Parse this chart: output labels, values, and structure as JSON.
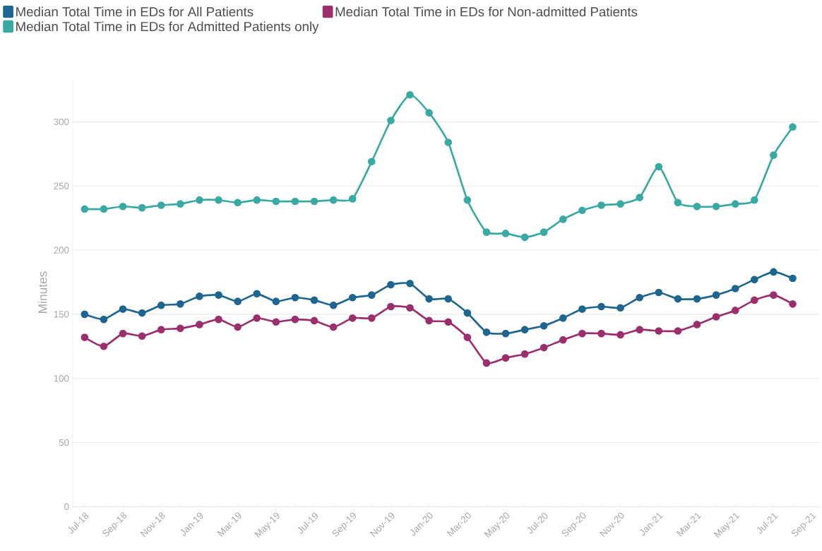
{
  "chart_data": {
    "type": "line",
    "ylabel": "Minutes",
    "legend": "top left",
    "grid": "y",
    "marker": "circle",
    "line_style": "solid",
    "x": [
      "2018-07",
      "2018-08",
      "2018-09",
      "2018-10",
      "2018-11",
      "2018-12",
      "2019-01",
      "2019-02",
      "2019-03",
      "2019-04",
      "2019-05",
      "2019-06",
      "2019-07",
      "2019-08",
      "2019-09",
      "2019-10",
      "2019-11",
      "2019-12",
      "2020-01",
      "2020-02",
      "2020-03",
      "2020-04",
      "2020-05",
      "2020-06",
      "2020-07",
      "2020-08",
      "2020-09",
      "2020-10",
      "2020-11",
      "2020-12",
      "2021-01",
      "2021-02",
      "2021-03",
      "2021-04",
      "2021-05",
      "2021-06",
      "2021-07",
      "2021-08"
    ],
    "xlim": [
      "2018-06-12",
      "2021-09-14"
    ],
    "xticks": [
      {
        "value": "2018-07",
        "label": "Jul-18"
      },
      {
        "value": "2018-08",
        "label": null
      },
      {
        "value": "2018-09",
        "label": "Sep-18"
      },
      {
        "value": "2018-10",
        "label": null
      },
      {
        "value": "2018-11",
        "label": "Nov-18"
      },
      {
        "value": "2018-12",
        "label": null
      },
      {
        "value": "2019-01",
        "label": "Jan-19"
      },
      {
        "value": "2019-02",
        "label": null
      },
      {
        "value": "2019-03",
        "label": "Mar-19"
      },
      {
        "value": "2019-04",
        "label": null
      },
      {
        "value": "2019-05",
        "label": "May-19"
      },
      {
        "value": "2019-06",
        "label": null
      },
      {
        "value": "2019-07",
        "label": "Jul-19"
      },
      {
        "value": "2019-08",
        "label": null
      },
      {
        "value": "2019-09",
        "label": "Sep-19"
      },
      {
        "value": "2019-10",
        "label": null
      },
      {
        "value": "2019-11",
        "label": "Nov-19"
      },
      {
        "value": "2019-12",
        "label": null
      },
      {
        "value": "2020-01",
        "label": "Jan-20"
      },
      {
        "value": "2020-02",
        "label": null
      },
      {
        "value": "2020-03",
        "label": "Mar-20"
      },
      {
        "value": "2020-04",
        "label": null
      },
      {
        "value": "2020-05",
        "label": "May-20"
      },
      {
        "value": "2020-06",
        "label": null
      },
      {
        "value": "2020-07",
        "label": "Jul-20"
      },
      {
        "value": "2020-08",
        "label": null
      },
      {
        "value": "2020-09",
        "label": "Sep-20"
      },
      {
        "value": "2020-10",
        "label": null
      },
      {
        "value": "2020-11",
        "label": "Nov-20"
      },
      {
        "value": "2020-12",
        "label": null
      },
      {
        "value": "2021-01",
        "label": "Jan-21"
      },
      {
        "value": "2021-02",
        "label": null
      },
      {
        "value": "2021-03",
        "label": "Mar-21"
      },
      {
        "value": "2021-04",
        "label": null
      },
      {
        "value": "2021-05",
        "label": "May-21"
      },
      {
        "value": "2021-06",
        "label": null
      },
      {
        "value": "2021-07",
        "label": "Jul-21"
      },
      {
        "value": "2021-08",
        "label": null
      },
      {
        "value": "2021-09",
        "label": "Sep-21"
      }
    ],
    "ylim": [
      0,
      334
    ],
    "yticks": [
      0,
      50,
      100,
      150,
      200,
      250,
      300
    ],
    "series": [
      {
        "name": "Median Total Time in EDs for All Patients",
        "color": "#1f6591",
        "values": [
          150,
          146,
          154,
          151,
          157,
          158,
          164,
          165,
          160,
          166,
          160,
          163,
          161,
          157,
          163,
          165,
          173,
          174,
          162,
          162,
          151,
          136,
          135,
          138,
          141,
          147,
          154,
          156,
          155,
          163,
          167,
          162,
          162,
          165,
          170,
          177,
          183,
          178
        ]
      },
      {
        "name": "Median Total Time in EDs for Non-admitted Patients",
        "color": "#9b2f6e",
        "values": [
          132,
          125,
          135,
          133,
          138,
          139,
          142,
          146,
          140,
          147,
          144,
          146,
          145,
          140,
          147,
          147,
          156,
          155,
          145,
          144,
          132,
          112,
          116,
          119,
          124,
          130,
          135,
          135,
          134,
          138,
          137,
          137,
          142,
          148,
          153,
          161,
          165,
          158
        ]
      },
      {
        "name": "Median Total Time in EDs for Admitted Patients only",
        "color": "#3aa9a3",
        "values": [
          232,
          232,
          234,
          233,
          235,
          236,
          239,
          239,
          237,
          239,
          238,
          238,
          238,
          239,
          240,
          269,
          301,
          321,
          307,
          284,
          239,
          214,
          213,
          210,
          214,
          224,
          231,
          235,
          236,
          241,
          265,
          237,
          234,
          234,
          236,
          239,
          274,
          296
        ]
      }
    ]
  }
}
